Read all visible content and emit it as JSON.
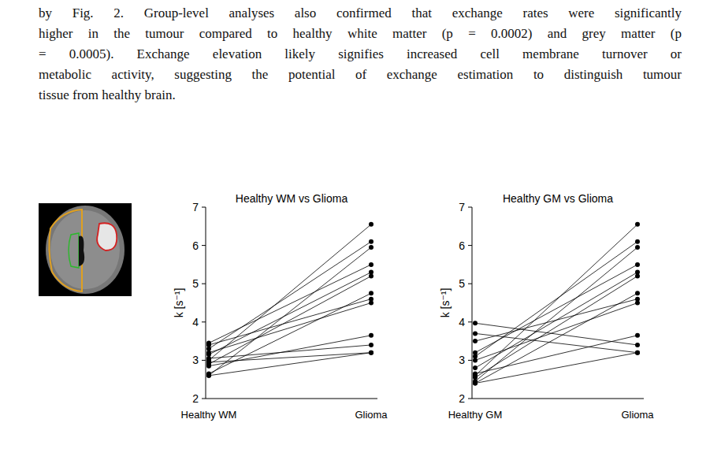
{
  "body_text": {
    "lines": [
      "by Fig. 2. Group-level analyses also confirmed that exchange rates were significantly",
      "higher in the tumour compared to healthy white matter (p = 0.0002) and grey matter (p",
      "= 0.0005). Exchange elevation likely signifies increased cell membrane turnover or",
      "metabolic activity, suggesting the potential of exchange estimation to distinguish tumour",
      "tissue from healthy brain."
    ]
  },
  "chart_data": [
    {
      "type": "line",
      "title": "Healthy WM vs Glioma",
      "y_label": "k [s⁻¹]",
      "categories": [
        "Healthy WM",
        "Glioma"
      ],
      "color": "#000000",
      "marker": "circle",
      "ylim": [
        2,
        7
      ],
      "yticks": [
        2,
        3,
        4,
        5,
        6,
        7
      ],
      "series": [
        {
          "values": [
            3.0,
            6.55
          ]
        },
        {
          "values": [
            3.3,
            6.1
          ]
        },
        {
          "values": [
            2.6,
            5.95
          ]
        },
        {
          "values": [
            3.45,
            5.5
          ]
        },
        {
          "values": [
            3.15,
            5.3
          ]
        },
        {
          "values": [
            2.9,
            5.2
          ]
        },
        {
          "values": [
            2.65,
            4.75
          ]
        },
        {
          "values": [
            3.4,
            4.6
          ]
        },
        {
          "values": [
            3.2,
            4.5
          ]
        },
        {
          "values": [
            2.85,
            3.65
          ]
        },
        {
          "values": [
            3.05,
            3.4
          ]
        },
        {
          "values": [
            2.95,
            3.2
          ]
        },
        {
          "values": [
            2.6,
            3.2
          ]
        }
      ]
    },
    {
      "type": "line",
      "title": "Healthy GM vs Glioma",
      "y_label": "k [s⁻¹]",
      "categories": [
        "Healthy GM",
        "Glioma"
      ],
      "color": "#000000",
      "marker": "circle",
      "ylim": [
        2,
        7
      ],
      "yticks": [
        2,
        3,
        4,
        5,
        6,
        7
      ],
      "series": [
        {
          "values": [
            2.6,
            6.55
          ]
        },
        {
          "values": [
            3.1,
            6.1
          ]
        },
        {
          "values": [
            2.45,
            5.95
          ]
        },
        {
          "values": [
            3.2,
            5.5
          ]
        },
        {
          "values": [
            2.8,
            5.3
          ]
        },
        {
          "values": [
            2.55,
            5.2
          ]
        },
        {
          "values": [
            2.4,
            4.75
          ]
        },
        {
          "values": [
            3.5,
            4.6
          ]
        },
        {
          "values": [
            3.0,
            4.5
          ]
        },
        {
          "values": [
            2.65,
            3.65
          ]
        },
        {
          "values": [
            3.97,
            3.4
          ]
        },
        {
          "values": [
            3.7,
            3.2
          ]
        },
        {
          "values": [
            2.4,
            3.2
          ]
        }
      ]
    }
  ]
}
